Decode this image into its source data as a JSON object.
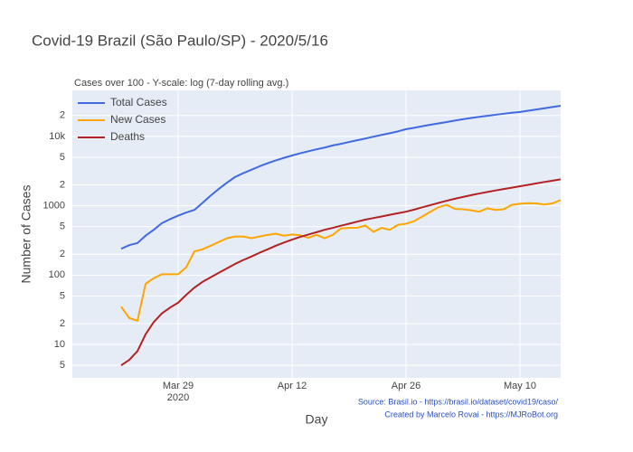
{
  "chart_data": {
    "type": "line",
    "title": "Covid-19 Brazil (São Paulo/SP) - 2020/5/16",
    "subtitle": "Cases over 100 - Y-scale: log (7-day rolling avg.)",
    "x_label": "Day",
    "y_label": "Number of Cases",
    "annotations": [
      "Source: Brasil.io - https://brasil.io/dataset/covid19/caso/",
      "Created by Marcelo Rovai - https://MJRoBot.org"
    ],
    "log_y": true,
    "grid": true,
    "legend": "top-left",
    "x": [
      "2020-03-22",
      "2020-03-23",
      "2020-03-24",
      "2020-03-25",
      "2020-03-26",
      "2020-03-27",
      "2020-03-28",
      "2020-03-29",
      "2020-03-30",
      "2020-03-31",
      "2020-04-01",
      "2020-04-02",
      "2020-04-03",
      "2020-04-04",
      "2020-04-05",
      "2020-04-06",
      "2020-04-07",
      "2020-04-08",
      "2020-04-09",
      "2020-04-10",
      "2020-04-11",
      "2020-04-12",
      "2020-04-13",
      "2020-04-14",
      "2020-04-15",
      "2020-04-16",
      "2020-04-17",
      "2020-04-18",
      "2020-04-19",
      "2020-04-20",
      "2020-04-21",
      "2020-04-22",
      "2020-04-23",
      "2020-04-24",
      "2020-04-25",
      "2020-04-26",
      "2020-04-27",
      "2020-04-28",
      "2020-04-29",
      "2020-04-30",
      "2020-05-01",
      "2020-05-02",
      "2020-05-03",
      "2020-05-04",
      "2020-05-05",
      "2020-05-06",
      "2020-05-07",
      "2020-05-08",
      "2020-05-09",
      "2020-05-10",
      "2020-05-11",
      "2020-05-12",
      "2020-05-13",
      "2020-05-14",
      "2020-05-15"
    ],
    "xlim": [
      "2020-03-16",
      "2020-05-15"
    ],
    "xticks": [
      {
        "value": "2020-03-29",
        "label": "Mar 29"
      },
      {
        "value": "2020-04-12",
        "label": "Apr 12"
      },
      {
        "value": "2020-04-26",
        "label": "Apr 26"
      },
      {
        "value": "2020-05-10",
        "label": "May 10"
      }
    ],
    "x_year_label": "2020",
    "ylim": [
      3.3,
      46000
    ],
    "yticks": [
      5,
      10,
      {
        "value": 20,
        "label": "2"
      },
      {
        "value": 50,
        "label": "5"
      },
      100,
      {
        "value": 200,
        "label": "2"
      },
      {
        "value": 500,
        "label": "5"
      },
      1000,
      {
        "value": 2000,
        "label": "2"
      },
      {
        "value": 5000,
        "label": "5"
      },
      {
        "value": 10000,
        "label": "10k"
      },
      {
        "value": 20000,
        "label": "2"
      }
    ],
    "series": [
      {
        "name": "Total Cases",
        "color": "#4169e1",
        "values": [
          240,
          270,
          290,
          370,
          450,
          560,
          640,
          720,
          800,
          870,
          1100,
          1400,
          1750,
          2150,
          2600,
          2950,
          3300,
          3700,
          4100,
          4500,
          4900,
          5300,
          5700,
          6100,
          6500,
          6900,
          7400,
          7800,
          8300,
          8800,
          9300,
          9900,
          10500,
          11100,
          11800,
          12700,
          13300,
          14000,
          14700,
          15400,
          16100,
          16900,
          17700,
          18400,
          19100,
          19800,
          20500,
          21200,
          21900,
          22500,
          23400,
          24400,
          25400,
          26500,
          27600
        ]
      },
      {
        "name": "New Cases",
        "color": "#ffa500",
        "values": [
          35,
          24,
          22,
          75,
          90,
          103,
          103,
          103,
          130,
          220,
          235,
          265,
          300,
          340,
          360,
          360,
          340,
          360,
          380,
          395,
          370,
          385,
          375,
          345,
          380,
          340,
          380,
          470,
          480,
          480,
          520,
          420,
          480,
          450,
          530,
          550,
          600,
          700,
          820,
          950,
          1030,
          900,
          890,
          860,
          820,
          920,
          870,
          890,
          1030,
          1070,
          1090,
          1080,
          1040,
          1080,
          1210
        ]
      },
      {
        "name": "Deaths",
        "color": "#b22222",
        "values": [
          5,
          6,
          8,
          14,
          21,
          28,
          34,
          40,
          52,
          66,
          80,
          93,
          108,
          125,
          145,
          165,
          185,
          210,
          235,
          265,
          295,
          325,
          355,
          385,
          415,
          450,
          480,
          515,
          550,
          590,
          630,
          665,
          700,
          740,
          780,
          820,
          880,
          950,
          1020,
          1100,
          1180,
          1260,
          1340,
          1420,
          1500,
          1580,
          1660,
          1740,
          1820,
          1910,
          2000,
          2100,
          2200,
          2300,
          2400
        ]
      }
    ]
  }
}
